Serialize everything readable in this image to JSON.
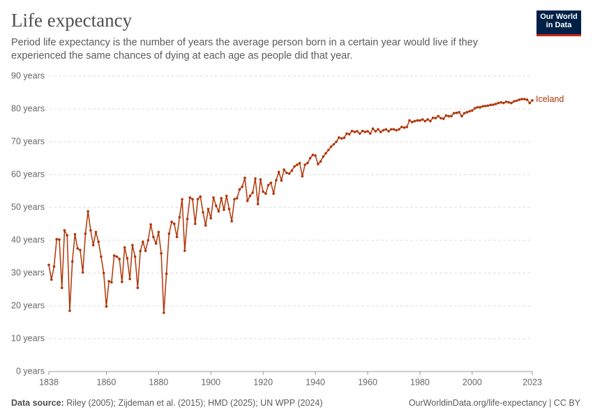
{
  "chart_data": {
    "type": "line",
    "title": "Life expectancy",
    "subtitle": "Period life expectancy is the number of years the average person born in a certain year would live if they experienced the same chances of dying at each age as people did that year.",
    "logo": [
      "Our World",
      "in Data"
    ],
    "source_label": "Data source:",
    "source": "Riley (2005); Zijdeman et al. (2015); HMD (2025); UN WPP (2024)",
    "url": "OurWorldinData.org/life-expectancy | CC BY",
    "x": [
      1838,
      1839,
      1840,
      1841,
      1842,
      1843,
      1844,
      1845,
      1846,
      1847,
      1848,
      1849,
      1850,
      1851,
      1852,
      1853,
      1854,
      1855,
      1856,
      1857,
      1858,
      1859,
      1860,
      1861,
      1862,
      1863,
      1864,
      1865,
      1866,
      1867,
      1868,
      1869,
      1870,
      1871,
      1872,
      1873,
      1874,
      1875,
      1876,
      1877,
      1878,
      1879,
      1880,
      1881,
      1882,
      1883,
      1884,
      1885,
      1886,
      1887,
      1888,
      1889,
      1890,
      1891,
      1892,
      1893,
      1894,
      1895,
      1896,
      1897,
      1898,
      1899,
      1900,
      1901,
      1902,
      1903,
      1904,
      1905,
      1906,
      1907,
      1908,
      1909,
      1910,
      1911,
      1912,
      1913,
      1914,
      1915,
      1916,
      1917,
      1918,
      1919,
      1920,
      1921,
      1922,
      1923,
      1924,
      1925,
      1926,
      1927,
      1928,
      1929,
      1930,
      1931,
      1932,
      1933,
      1934,
      1935,
      1936,
      1937,
      1938,
      1939,
      1940,
      1941,
      1942,
      1943,
      1944,
      1945,
      1946,
      1947,
      1948,
      1949,
      1950,
      1951,
      1952,
      1953,
      1954,
      1955,
      1956,
      1957,
      1958,
      1959,
      1960,
      1961,
      1962,
      1963,
      1964,
      1965,
      1966,
      1967,
      1968,
      1969,
      1970,
      1971,
      1972,
      1973,
      1974,
      1975,
      1976,
      1977,
      1978,
      1979,
      1980,
      1981,
      1982,
      1983,
      1984,
      1985,
      1986,
      1987,
      1988,
      1989,
      1990,
      1991,
      1992,
      1993,
      1994,
      1995,
      1996,
      1997,
      1998,
      1999,
      2000,
      2001,
      2002,
      2003,
      2004,
      2005,
      2006,
      2007,
      2008,
      2009,
      2010,
      2011,
      2012,
      2013,
      2014,
      2015,
      2016,
      2017,
      2018,
      2019,
      2020,
      2021,
      2022,
      2023
    ],
    "series": [
      {
        "name": "Iceland",
        "color": "#b13507",
        "values": [
          32.5,
          28,
          32,
          40.3,
          40.2,
          25.5,
          43,
          41.5,
          18.5,
          33.5,
          41.8,
          37.5,
          37,
          30.2,
          42,
          48.8,
          43,
          38.5,
          42.5,
          39.5,
          35,
          30,
          19.8,
          27.5,
          27.2,
          35.3,
          35,
          34.3,
          27.3,
          37.8,
          34.5,
          28.2,
          38.5,
          35,
          25.5,
          36.7,
          39.5,
          36.8,
          40,
          44.8,
          41,
          39,
          42.5,
          36,
          17.9,
          29.8,
          42,
          45.6,
          45,
          41,
          47,
          52.5,
          36.8,
          46.5,
          53,
          52.5,
          45,
          52.5,
          53.3,
          48.5,
          44.5,
          49.5,
          46.7,
          53,
          50.5,
          48.8,
          52.8,
          49.3,
          53.5,
          49.5,
          45.8,
          52.5,
          52.8,
          55.5,
          56.3,
          59,
          52,
          53.5,
          54.5,
          58.8,
          51,
          58.5,
          54.8,
          54.2,
          56.8,
          57.5,
          54.2,
          58.3,
          60.8,
          58.2,
          61.5,
          60.5,
          60.3,
          61.2,
          62.5,
          63,
          63.5,
          59.5,
          63,
          63.5,
          65,
          66,
          65.8,
          63.2,
          64,
          65.5,
          66.5,
          67.5,
          68.5,
          69.2,
          70,
          71.3,
          71,
          71.2,
          72.5,
          72.3,
          73.3,
          73,
          73.2,
          72.5,
          73.3,
          73,
          73.2,
          72.5,
          74,
          73.2,
          73.8,
          73,
          73.5,
          73.8,
          73.2,
          73.8,
          73.8,
          73.5,
          73.8,
          74.5,
          74.3,
          74.5,
          76.5,
          76,
          76.3,
          76.5,
          76.5,
          76.8,
          76.3,
          76.8,
          76.3,
          77.3,
          77.2,
          77.8,
          77.2,
          77,
          78,
          77.8,
          77.8,
          78.7,
          78.8,
          79,
          77.8,
          78.7,
          79,
          79.3,
          79.5,
          80.2,
          80.5,
          80.5,
          80.8,
          80.9,
          81,
          81.2,
          81.3,
          81.5,
          81.8,
          82,
          81.8,
          82.2,
          82,
          81.8,
          82.3,
          82.5,
          82.8,
          83,
          83,
          82.8,
          81.8,
          82.6
        ]
      }
    ],
    "xlim": [
      1838,
      2023
    ],
    "xticks": [
      1838,
      1860,
      1880,
      1900,
      1920,
      1940,
      1960,
      1980,
      2000,
      2023
    ],
    "ylim": [
      0,
      90
    ],
    "yticks": [
      {
        "value": 0,
        "label": "0 years"
      },
      {
        "value": 10,
        "label": "10 years"
      },
      {
        "value": 20,
        "label": "20 years"
      },
      {
        "value": 30,
        "label": "30 years"
      },
      {
        "value": 40,
        "label": "40 years"
      },
      {
        "value": 50,
        "label": "50 years"
      },
      {
        "value": 60,
        "label": "60 years"
      },
      {
        "value": 70,
        "label": "70 years"
      },
      {
        "value": 80,
        "label": "80 years"
      },
      {
        "value": 90,
        "label": "90 years"
      }
    ],
    "grid": true
  }
}
